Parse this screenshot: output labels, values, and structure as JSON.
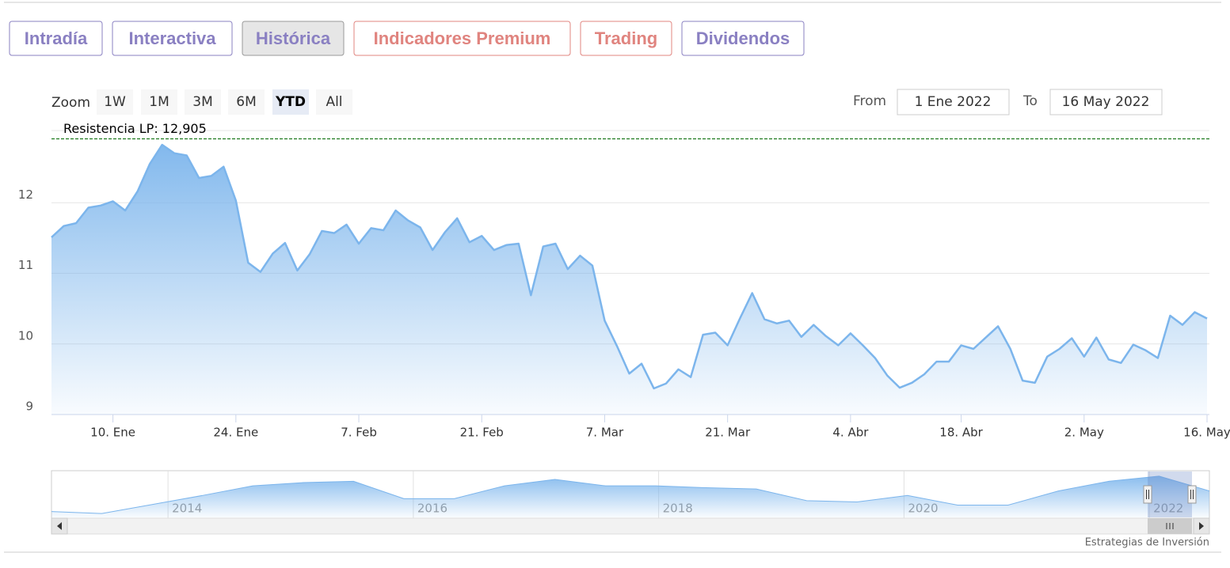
{
  "tabs": [
    {
      "label": "Intradía",
      "color": "#8a80c2",
      "active": false
    },
    {
      "label": "Interactiva",
      "color": "#8a80c2",
      "active": false
    },
    {
      "label": "Histórica",
      "color": "#8a80c2",
      "active": true
    },
    {
      "label": "Indicadores Premium",
      "color": "#e0847f",
      "active": false
    },
    {
      "label": "Trading",
      "color": "#e0847f",
      "active": false
    },
    {
      "label": "Dividendos",
      "color": "#8a80c2",
      "active": false
    }
  ],
  "zoom": {
    "label": "Zoom",
    "buttons": [
      "1W",
      "1M",
      "3M",
      "6M",
      "YTD",
      "All"
    ],
    "active": "YTD"
  },
  "range": {
    "from_label": "From",
    "from": "1 Ene 2022",
    "to_label": "To",
    "to": "16 May 2022"
  },
  "chart_data": {
    "type": "area",
    "x": [
      "2022-01-03",
      "2022-01-04",
      "2022-01-05",
      "2022-01-06",
      "2022-01-07",
      "2022-01-10",
      "2022-01-11",
      "2022-01-12",
      "2022-01-13",
      "2022-01-14",
      "2022-01-17",
      "2022-01-18",
      "2022-01-19",
      "2022-01-20",
      "2022-01-21",
      "2022-01-24",
      "2022-01-25",
      "2022-01-26",
      "2022-01-27",
      "2022-01-28",
      "2022-01-31",
      "2022-02-01",
      "2022-02-02",
      "2022-02-03",
      "2022-02-04",
      "2022-02-07",
      "2022-02-08",
      "2022-02-09",
      "2022-02-10",
      "2022-02-11",
      "2022-02-14",
      "2022-02-15",
      "2022-02-16",
      "2022-02-17",
      "2022-02-18",
      "2022-02-21",
      "2022-02-22",
      "2022-02-23",
      "2022-02-24",
      "2022-02-25",
      "2022-02-28",
      "2022-03-01",
      "2022-03-02",
      "2022-03-03",
      "2022-03-04",
      "2022-03-07",
      "2022-03-08",
      "2022-03-09",
      "2022-03-10",
      "2022-03-11",
      "2022-03-14",
      "2022-03-15",
      "2022-03-16",
      "2022-03-17",
      "2022-03-18",
      "2022-03-21",
      "2022-03-22",
      "2022-03-23",
      "2022-03-24",
      "2022-03-25",
      "2022-03-28",
      "2022-03-29",
      "2022-03-30",
      "2022-03-31",
      "2022-04-01",
      "2022-04-04",
      "2022-04-05",
      "2022-04-06",
      "2022-04-07",
      "2022-04-08",
      "2022-04-11",
      "2022-04-12",
      "2022-04-13",
      "2022-04-14",
      "2022-04-18",
      "2022-04-19",
      "2022-04-20",
      "2022-04-21",
      "2022-04-22",
      "2022-04-25",
      "2022-04-26",
      "2022-04-27",
      "2022-04-28",
      "2022-04-29",
      "2022-05-02",
      "2022-05-03",
      "2022-05-04",
      "2022-05-05",
      "2022-05-06",
      "2022-05-09",
      "2022-05-10",
      "2022-05-11",
      "2022-05-12",
      "2022-05-13",
      "2022-05-16"
    ],
    "values": [
      11.51,
      11.67,
      11.71,
      11.93,
      11.96,
      12.02,
      11.89,
      12.16,
      12.55,
      12.82,
      12.7,
      12.67,
      12.35,
      12.38,
      12.51,
      12.03,
      11.15,
      11.02,
      11.28,
      11.43,
      11.04,
      11.27,
      11.6,
      11.57,
      11.69,
      11.42,
      11.64,
      11.61,
      11.89,
      11.75,
      11.65,
      11.33,
      11.58,
      11.78,
      11.44,
      11.53,
      11.33,
      11.4,
      11.42,
      10.69,
      11.38,
      11.42,
      11.06,
      11.25,
      11.11,
      10.33,
      9.97,
      9.58,
      9.72,
      9.37,
      9.44,
      9.64,
      9.53,
      10.13,
      10.16,
      9.98,
      10.36,
      10.72,
      10.35,
      10.29,
      10.33,
      10.1,
      10.27,
      10.11,
      9.98,
      10.15,
      9.98,
      9.8,
      9.55,
      9.38,
      9.45,
      9.57,
      9.75,
      9.75,
      9.98,
      9.93,
      10.09,
      10.25,
      9.93,
      9.48,
      9.45,
      9.82,
      9.93,
      10.08,
      9.82,
      10.09,
      9.78,
      9.73,
      9.99,
      9.91,
      9.8,
      10.4,
      10.27,
      10.45,
      10.36
    ],
    "color": "#7cb5ec",
    "ylim": [
      9,
      13
    ],
    "yticks": [
      9,
      10,
      11,
      12
    ],
    "xticks": [
      {
        "value": "2022-01-10",
        "label": "10. Ene"
      },
      {
        "value": "2022-01-24",
        "label": "24. Ene"
      },
      {
        "value": "2022-02-07",
        "label": "7. Feb"
      },
      {
        "value": "2022-02-21",
        "label": "21. Feb"
      },
      {
        "value": "2022-03-07",
        "label": "7. Mar"
      },
      {
        "value": "2022-03-21",
        "label": "21. Mar"
      },
      {
        "value": "2022-04-04",
        "label": "4. Abr"
      },
      {
        "value": "2022-04-18",
        "label": "18. Abr"
      },
      {
        "value": "2022-05-02",
        "label": "2. May"
      },
      {
        "value": "2022-05-16",
        "label": "16. May"
      }
    ],
    "grid": true,
    "plot_lines": [
      {
        "value": 12.905,
        "label": "Resistencia LP: 12,905",
        "color": "#1e7a1e"
      }
    ]
  },
  "navigator": {
    "xlim": [
      2013.05,
      2022.49
    ],
    "ylim": [
      6.2,
      13.2
    ],
    "xticks": [
      2014,
      2016,
      2018,
      2020,
      2022
    ],
    "values": [
      7.1,
      6.8,
      8.2,
      9.6,
      11.1,
      11.6,
      11.8,
      9.1,
      9.1,
      11.1,
      12.1,
      11.1,
      11.1,
      10.8,
      10.6,
      8.8,
      8.6,
      9.6,
      8.1,
      8.1,
      10.3,
      11.8,
      12.6,
      10.3
    ],
    "color": "#7cb5ec"
  },
  "credit": "Estrategias de Inversión"
}
